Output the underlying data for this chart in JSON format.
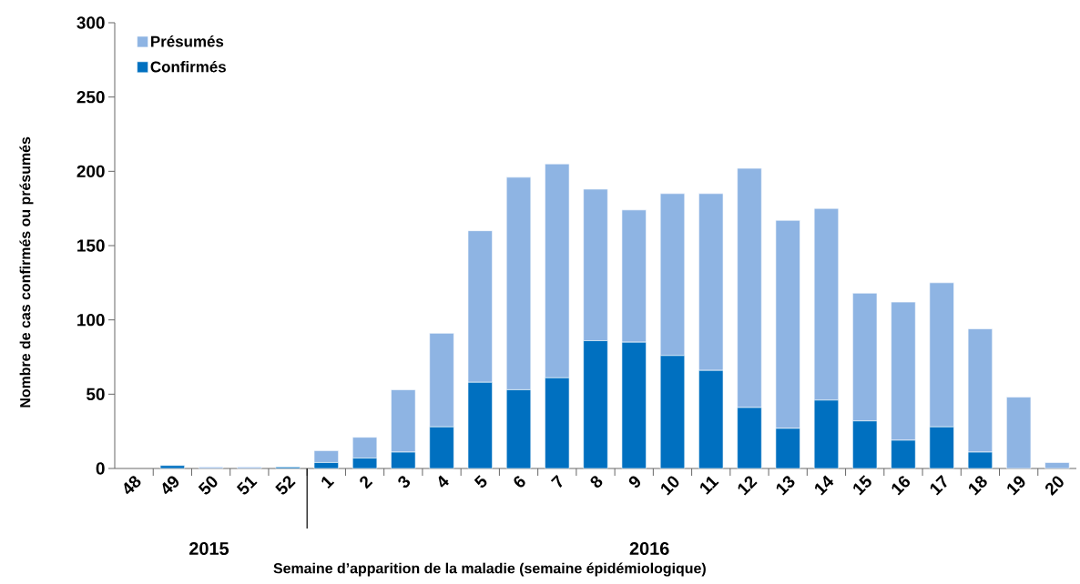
{
  "chart_data": {
    "type": "bar",
    "stacked": true,
    "xlabel": "Semaine d’apparition de la maladie (semaine épidémiologique)",
    "ylabel": "Nombre de cas confirmés ou présumés",
    "categories": [
      "48",
      "49",
      "50",
      "51",
      "52",
      "1",
      "2",
      "3",
      "4",
      "5",
      "6",
      "7",
      "8",
      "9",
      "10",
      "11",
      "12",
      "13",
      "14",
      "15",
      "16",
      "17",
      "18",
      "19",
      "20"
    ],
    "series": [
      {
        "name": "Confirmés",
        "color": "#0070c0",
        "values": [
          0,
          2,
          0,
          0,
          1,
          4,
          7,
          11,
          28,
          58,
          53,
          61,
          86,
          85,
          76,
          66,
          41,
          27,
          46,
          32,
          19,
          28,
          11,
          0,
          0
        ]
      },
      {
        "name": "Présumés",
        "color": "#8eb4e3",
        "values": [
          0,
          0,
          1,
          1,
          0,
          8,
          14,
          42,
          63,
          102,
          143,
          144,
          102,
          89,
          109,
          119,
          161,
          140,
          129,
          86,
          93,
          97,
          83,
          48,
          4
        ]
      }
    ],
    "ylim": [
      0,
      300
    ],
    "yticks": [
      0,
      50,
      100,
      150,
      200,
      250,
      300
    ],
    "legend": "top left",
    "grid": false,
    "annotations": [
      "2015",
      "2016"
    ]
  }
}
